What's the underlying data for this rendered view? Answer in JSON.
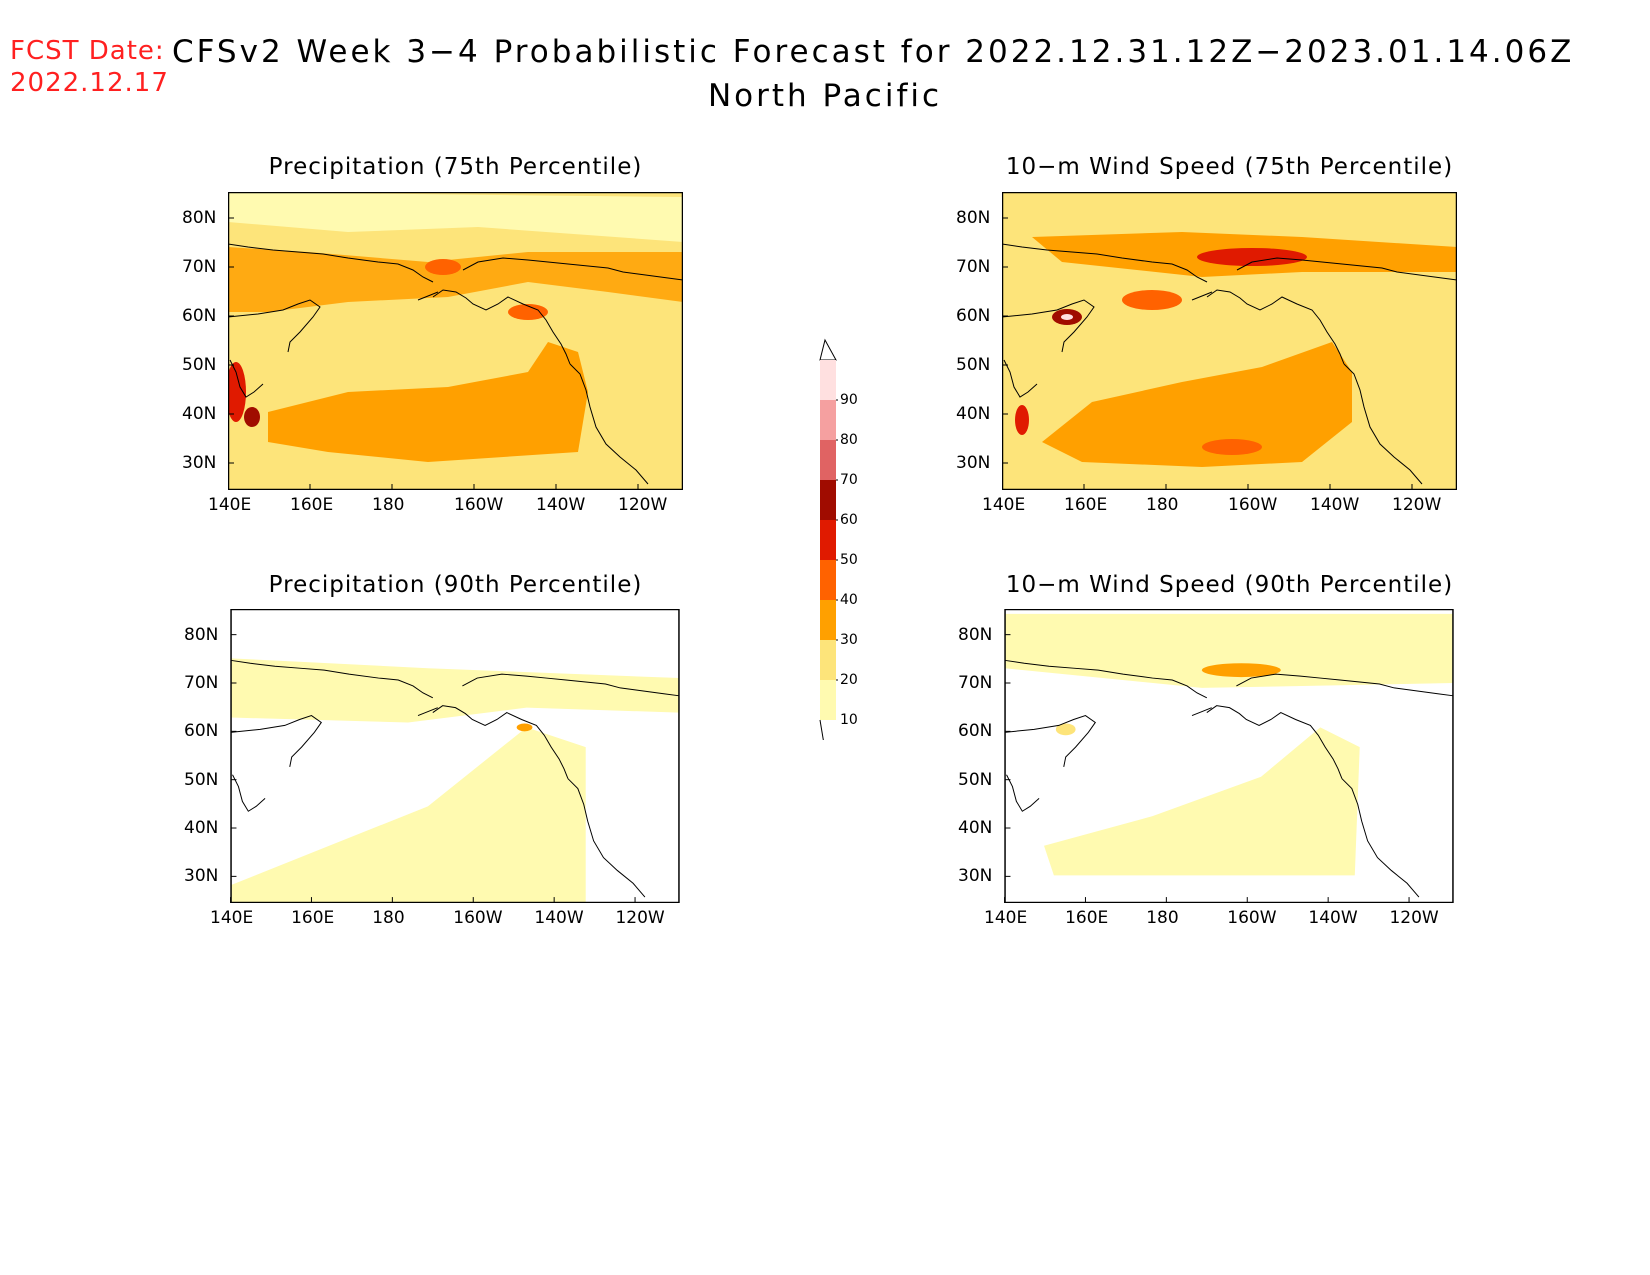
{
  "header": {
    "fcst_label": "FCST Date:",
    "fcst_date": "2022.12.17",
    "title": "CFSv2 Week 3−4 Probabilistic Forecast for 2022.12.31.12Z−2023.01.14.06Z",
    "region": "North Pacific"
  },
  "colors": {
    "c10_20": "#fffab0",
    "c20_30": "#fde47a",
    "c30_40": "#ffa000",
    "c40_50": "#ff6200",
    "c50_60": "#e01a00",
    "c60_70": "#a00c00",
    "c70_80": "#e06363",
    "c80_90": "#f5a0a0",
    "c90_100": "#ffe0e0",
    "coast": "#000000"
  },
  "map_axes": {
    "lat_labels": [
      "80N",
      "70N",
      "60N",
      "50N",
      "40N",
      "30N"
    ],
    "lon_labels": [
      "140E",
      "160E",
      "180",
      "160W",
      "140W",
      "120W"
    ]
  },
  "panels": [
    {
      "id": "precip75",
      "title": "Precipitation (75th Percentile)"
    },
    {
      "id": "wind75",
      "title": "10−m Wind Speed (75th Percentile)"
    },
    {
      "id": "precip90",
      "title": "Precipitation (90th Percentile)"
    },
    {
      "id": "wind90",
      "title": "10−m Wind Speed (90th Percentile)"
    }
  ],
  "colorbar": {
    "labels": [
      "90",
      "80",
      "70",
      "60",
      "50",
      "40",
      "30",
      "20",
      "10"
    ]
  }
}
